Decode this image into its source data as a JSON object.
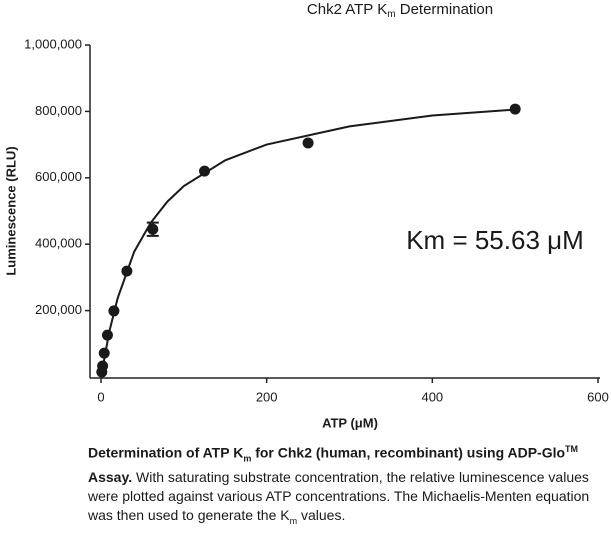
{
  "chart_data": {
    "type": "scatter",
    "title_parts": [
      "Chk2 ATP K",
      "m",
      " Determination"
    ],
    "x_label": "ATP (μM)",
    "y_label": "Luminescence (RLU)",
    "annotation": "Km = 55.63 μM",
    "color": "#1a1a1a",
    "x": [
      0.98,
      1.95,
      3.9,
      7.8,
      15.6,
      31.25,
      62.5,
      125,
      250,
      500
    ],
    "values": [
      15000,
      33000,
      72000,
      126000,
      199000,
      319000,
      445000,
      620000,
      705000,
      807000
    ],
    "errors": [
      null,
      null,
      null,
      null,
      null,
      null,
      20000,
      null,
      null,
      null
    ],
    "fit_curve": {
      "x": [
        0,
        10,
        20,
        40,
        60,
        80,
        100,
        150,
        200,
        300,
        400,
        500
      ],
      "values": [
        0,
        136400,
        236600,
        377000,
        464500,
        527900,
        575100,
        652600,
        700200,
        755000,
        787500,
        805400
      ]
    },
    "xlim": [
      0,
      600
    ],
    "xticks": [
      0,
      200,
      400,
      600
    ],
    "ylim": [
      0,
      1000000
    ],
    "yticks": [
      {
        "value": 200000,
        "label": "200,000"
      },
      {
        "value": 400000,
        "label": "400,000"
      },
      {
        "value": 600000,
        "label": "600,000"
      },
      {
        "value": 800000,
        "label": "800,000"
      },
      {
        "value": 1000000,
        "label": "1,000,000"
      }
    ]
  },
  "caption": [
    {
      "text": "Determination of ATP K",
      "style": "bold"
    },
    {
      "text": "m",
      "style": "bold-sub"
    },
    {
      "text": " for Chk2 (human, recombinant) using ADP-Glo",
      "style": "bold"
    },
    {
      "text": "TM",
      "style": "bold-sup"
    },
    {
      "text": " Assay.",
      "style": "bold"
    },
    {
      "text": " With saturating substrate concentration, the relative luminescence values were plotted against various ATP concentrations. The Michaelis-Menten equation was then used to generate the K",
      "style": "normal"
    },
    {
      "text": "m",
      "style": "sub"
    },
    {
      "text": " values.",
      "style": "normal"
    }
  ]
}
